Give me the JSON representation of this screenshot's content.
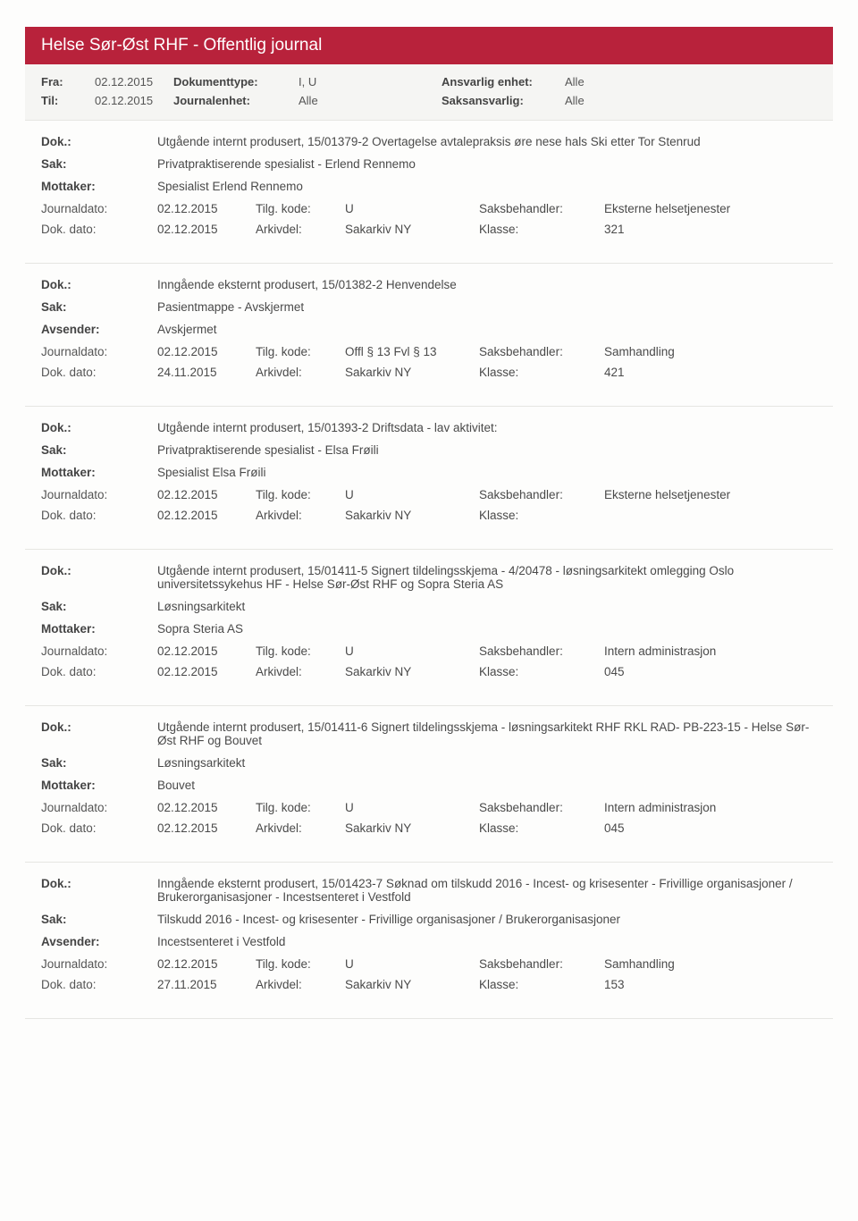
{
  "banner": "Helse Sør-Øst RHF - Offentlig journal",
  "filter": {
    "fra_lbl": "Fra:",
    "fra": "02.12.2015",
    "til_lbl": "Til:",
    "til": "02.12.2015",
    "doktype_lbl": "Dokumenttype:",
    "doktype": "I, U",
    "journ_lbl": "Journalenhet:",
    "journ": "Alle",
    "ansv_lbl": "Ansvarlig enhet:",
    "ansv": "Alle",
    "saks_lbl": "Saksansvarlig:",
    "saks": "Alle"
  },
  "labels": {
    "dok": "Dok.:",
    "sak": "Sak:",
    "mottaker": "Mottaker:",
    "avsender": "Avsender:",
    "journaldato": "Journaldato:",
    "dokdato": "Dok. dato:",
    "tilgkode": "Tilg. kode:",
    "arkivdel": "Arkivdel:",
    "saksbeh": "Saksbehandler:",
    "klasse": "Klasse:"
  },
  "entries": [
    {
      "dok": "Utgående internt produsert, 15/01379-2 Overtagelse avtalepraksis øre nese hals Ski etter Tor Stenrud",
      "sak": "Privatpraktiserende spesialist - Erlend Rennemo",
      "party_lbl": "Mottaker:",
      "party": "Spesialist Erlend Rennemo",
      "journaldato": "02.12.2015",
      "tilgkode": "U",
      "saksbeh": "Eksterne helsetjenester",
      "dokdato": "02.12.2015",
      "arkivdel": "Sakarkiv NY",
      "klasse": "321"
    },
    {
      "dok": "Inngående eksternt produsert, 15/01382-2 Henvendelse",
      "sak": "Pasientmappe - Avskjermet",
      "party_lbl": "Avsender:",
      "party": "Avskjermet",
      "journaldato": "02.12.2015",
      "tilgkode": "Offl § 13 Fvl § 13",
      "saksbeh": "Samhandling",
      "dokdato": "24.11.2015",
      "arkivdel": "Sakarkiv NY",
      "klasse": "421"
    },
    {
      "dok": "Utgående internt produsert, 15/01393-2 Driftsdata - lav aktivitet:",
      "sak": "Privatpraktiserende spesialist - Elsa Frøili",
      "party_lbl": "Mottaker:",
      "party": "Spesialist Elsa Frøili",
      "journaldato": "02.12.2015",
      "tilgkode": "U",
      "saksbeh": "Eksterne helsetjenester",
      "dokdato": "02.12.2015",
      "arkivdel": "Sakarkiv NY",
      "klasse": ""
    },
    {
      "dok": "Utgående internt produsert, 15/01411-5 Signert tildelingsskjema - 4/20478 - løsningsarkitekt omlegging Oslo universitetssykehus HF - Helse Sør-Øst RHF og Sopra Steria AS",
      "sak": "Løsningsarkitekt",
      "party_lbl": "Mottaker:",
      "party": "Sopra Steria AS",
      "journaldato": "02.12.2015",
      "tilgkode": "U",
      "saksbeh": "Intern administrasjon",
      "dokdato": "02.12.2015",
      "arkivdel": "Sakarkiv NY",
      "klasse": "045"
    },
    {
      "dok": "Utgående internt produsert, 15/01411-6 Signert tildelingsskjema - løsningsarkitekt RHF RKL RAD- PB-223-15 - Helse Sør-Øst RHF og Bouvet",
      "sak": "Løsningsarkitekt",
      "party_lbl": "Mottaker:",
      "party": "Bouvet",
      "journaldato": "02.12.2015",
      "tilgkode": "U",
      "saksbeh": "Intern administrasjon",
      "dokdato": "02.12.2015",
      "arkivdel": "Sakarkiv NY",
      "klasse": "045"
    },
    {
      "dok": "Inngående eksternt produsert, 15/01423-7 Søknad om tilskudd 2016 - Incest- og krisesenter - Frivillige organisasjoner / Brukerorganisasjoner - Incestsenteret i Vestfold",
      "sak": "Tilskudd 2016 - Incest- og krisesenter - Frivillige organisasjoner / Brukerorganisasjoner",
      "party_lbl": "Avsender:",
      "party": "Incestsenteret i Vestfold",
      "journaldato": "02.12.2015",
      "tilgkode": "U",
      "saksbeh": "Samhandling",
      "dokdato": "27.11.2015",
      "arkivdel": "Sakarkiv NY",
      "klasse": "153"
    }
  ]
}
